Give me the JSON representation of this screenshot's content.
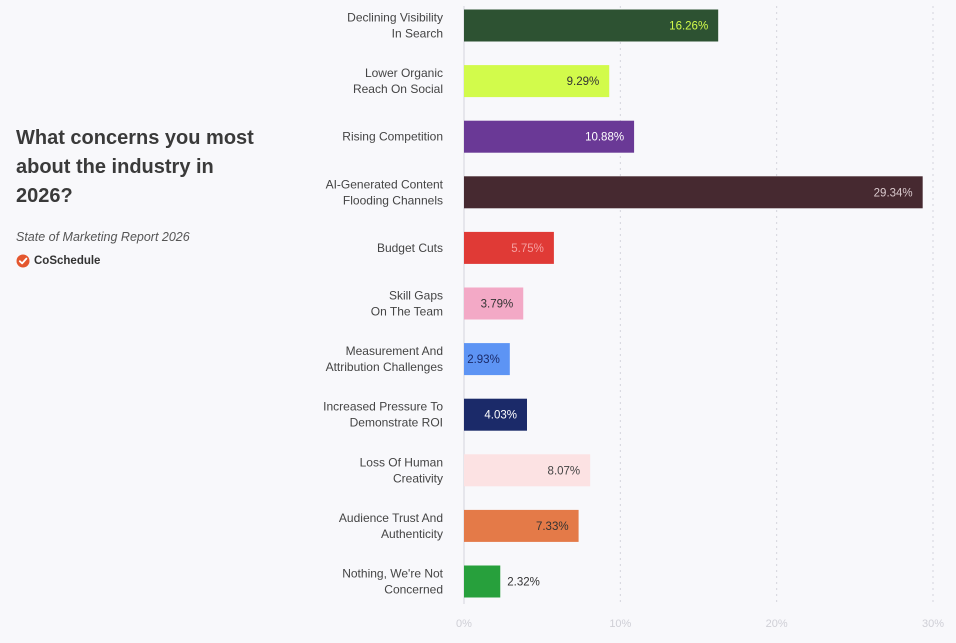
{
  "header": {
    "title": "What concerns you most\nabout the industry in\n2026?",
    "source": "State of Marketing Report 2026",
    "brand_name": "CoSchedule",
    "brand_icon": "coschedule-logo-icon",
    "brand_color": "#e4572e"
  },
  "chart_data": {
    "type": "bar",
    "orientation": "horizontal",
    "title": "What concerns you most about the industry in 2026?",
    "categories": [
      [
        "Declining Visibility",
        "In Search"
      ],
      [
        "Lower Organic",
        "Reach On Social"
      ],
      [
        "Rising Competition"
      ],
      [
        "AI-Generated Content",
        "Flooding Channels"
      ],
      [
        "Budget Cuts"
      ],
      [
        "Skill Gaps",
        "On The Team"
      ],
      [
        "Measurement And",
        "Attribution Challenges"
      ],
      [
        "Increased Pressure To",
        "Demonstrate ROI"
      ],
      [
        "Loss Of Human",
        "Creativity"
      ],
      [
        "Audience Trust And",
        "Authenticity"
      ],
      [
        "Nothing, We're Not",
        "Concerned"
      ]
    ],
    "values": [
      16.26,
      9.29,
      10.88,
      29.34,
      5.75,
      3.79,
      2.93,
      4.03,
      8.07,
      7.33,
      2.32
    ],
    "value_labels": [
      "16.26%",
      "9.29%",
      "10.88%",
      "29.34%",
      "5.75%",
      "3.79%",
      "2.93%",
      "4.03%",
      "8.07%",
      "7.33%",
      "2.32%"
    ],
    "colors": [
      "#2d5232",
      "#d2fb4b",
      "#6a3996",
      "#462930",
      "#e03a36",
      "#f3a9c6",
      "#5d94f4",
      "#1b2a69",
      "#fce2e3",
      "#e47a48",
      "#27a03c"
    ],
    "label_colors": [
      "#d2fb4b",
      "#333333",
      "#ffffff",
      "#d9c9cd",
      "#f5a0a0",
      "#333333",
      "#1b2a69",
      "#ffffff",
      "#444444",
      "#333333",
      "#333333"
    ],
    "label_outside": [
      false,
      false,
      false,
      false,
      false,
      false,
      false,
      false,
      false,
      false,
      true
    ],
    "xlim": [
      0,
      30
    ],
    "xticks": [
      0,
      10,
      20,
      30
    ],
    "xtick_labels": [
      "0%",
      "10%",
      "20%",
      "30%"
    ],
    "grid": true
  }
}
